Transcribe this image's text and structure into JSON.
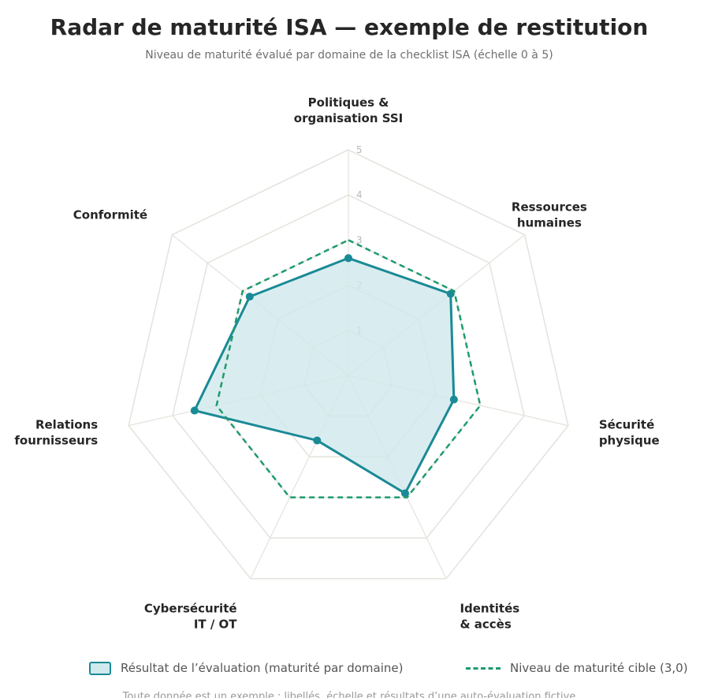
{
  "page": {
    "title": "Radar de maturité ISA — exemple de restitution",
    "subtitle": "Niveau de maturité évalué par domaine de la checklist ISA (échelle 0 à 5)",
    "footnote": "Toute donnée est un exemple : libellés, échelle et résultats d’une auto-évaluation fictive"
  },
  "chart_data": {
    "type": "radar",
    "title": "Radar de maturité ISA — exemple de restitution",
    "subtitle": "Niveau de maturité évalué par domaine de la checklist ISA (échelle 0 à 5)",
    "axes": [
      {
        "label_lines": [
          "Politiques &",
          "organisation SSI"
        ],
        "anchor": "middle"
      },
      {
        "label_lines": [
          "Ressources",
          "humaines"
        ],
        "anchor": "middle"
      },
      {
        "label_lines": [
          "Sécurité",
          "physique"
        ],
        "anchor": "start"
      },
      {
        "label_lines": [
          "Identités",
          "& accès"
        ],
        "anchor": "start"
      },
      {
        "label_lines": [
          "Cybersécurité",
          "IT / OT"
        ],
        "anchor": "end"
      },
      {
        "label_lines": [
          "Relations",
          "fournisseurs"
        ],
        "anchor": "end"
      },
      {
        "label_lines": [
          "Conformité"
        ],
        "anchor": "end"
      }
    ],
    "rlim": [
      0,
      5
    ],
    "ticks": [
      "1",
      "2",
      "3",
      "4",
      "5"
    ],
    "grid": true,
    "series": [
      {
        "name": "Résultat de l’évaluation (maturité par domaine)",
        "values": [
          2.6,
          2.9,
          2.4,
          2.9,
          1.6,
          3.5,
          2.8
        ],
        "style": "filled",
        "color": "#1a8a96",
        "fill": "#cfe9ec"
      },
      {
        "name": "Niveau de maturité cible (3,0)",
        "values": [
          3.0,
          3.0,
          3.0,
          3.0,
          3.0,
          3.0,
          3.0
        ],
        "style": "dashed",
        "color": "#1e9a6e"
      }
    ],
    "legend_position": "bottom"
  }
}
